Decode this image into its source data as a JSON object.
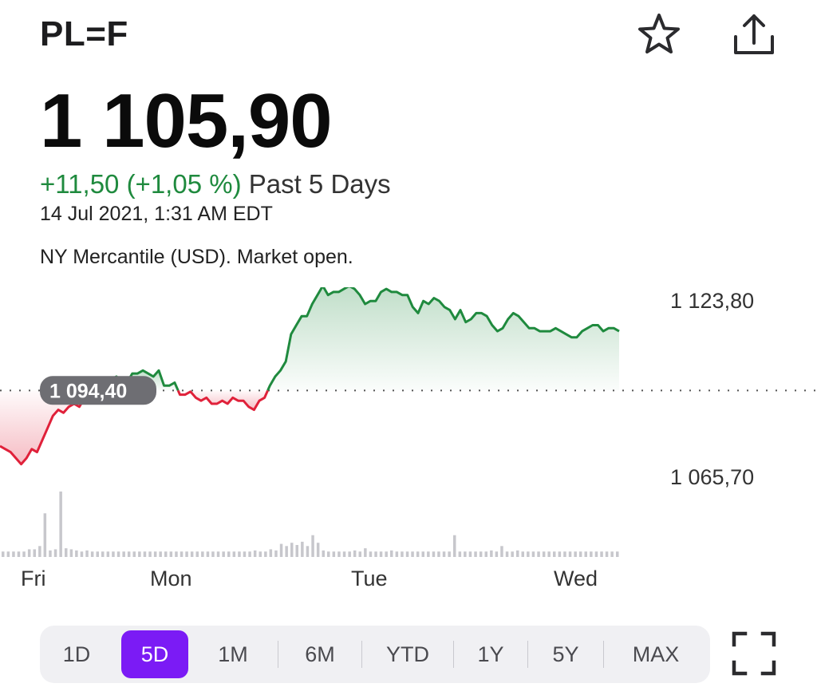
{
  "header": {
    "ticker": "PL=F",
    "favorite_icon": "star-outline-icon",
    "share_icon": "share-icon"
  },
  "quote": {
    "price": "1 105,90",
    "change": "+11,50 (+1,05 %)",
    "period": "Past 5 Days",
    "timestamp": "14 Jul 2021, 1:31 AM EDT",
    "market_status": "NY Mercantile (USD). Market open."
  },
  "colors": {
    "up": "#1f8a3e",
    "down": "#e0213a",
    "accent": "#7b1bf5"
  },
  "chart_data": {
    "type": "line",
    "reference_label": "1 094,40",
    "reference_value": 1094.4,
    "y_tick_labels": [
      "1 123,80",
      "1 065,70"
    ],
    "y_ticks": [
      1123.8,
      1065.7
    ],
    "x_tick_labels": [
      "Fri",
      "Mon",
      "Tue",
      "Wed"
    ],
    "series": [
      {
        "values": [
          1076,
          1075,
          1074,
          1072,
          1070,
          1072,
          1075,
          1074,
          1078,
          1082,
          1086,
          1088,
          1087,
          1089,
          1090,
          1089,
          1092,
          1094,
          1091,
          1091,
          1097,
          1098,
          1099,
          1097,
          1097,
          1100,
          1100,
          1101,
          1100,
          1099,
          1101,
          1096,
          1096,
          1097,
          1093,
          1093,
          1094,
          1092,
          1091,
          1092,
          1090,
          1090,
          1091,
          1090,
          1092,
          1091,
          1091,
          1089,
          1088,
          1091,
          1092,
          1096,
          1099,
          1101,
          1104,
          1113,
          1116,
          1119,
          1119,
          1123,
          1126,
          1129,
          1126,
          1127,
          1127,
          1128,
          1129,
          1128,
          1126,
          1123,
          1124,
          1124,
          1127,
          1128,
          1127,
          1127,
          1126,
          1126,
          1122,
          1120,
          1124,
          1123,
          1125,
          1124,
          1122,
          1121,
          1118,
          1121,
          1117,
          1118,
          1120,
          1120,
          1119,
          1116,
          1114,
          1115,
          1118,
          1120,
          1119,
          1117,
          1115,
          1115,
          1114,
          1114,
          1114,
          1115,
          1114,
          1113,
          1112,
          1112,
          1114,
          1115,
          1116,
          1116,
          1114,
          1115,
          1115,
          1114
        ]
      }
    ],
    "volume": [
      0.05,
      0.05,
      0.05,
      0.05,
      0.05,
      0.07,
      0.07,
      0.1,
      0.4,
      0.06,
      0.07,
      0.6,
      0.08,
      0.07,
      0.06,
      0.05,
      0.06,
      0.05,
      0.05,
      0.05,
      0.05,
      0.05,
      0.05,
      0.05,
      0.05,
      0.05,
      0.05,
      0.05,
      0.05,
      0.05,
      0.05,
      0.05,
      0.05,
      0.05,
      0.05,
      0.05,
      0.05,
      0.05,
      0.05,
      0.05,
      0.05,
      0.05,
      0.05,
      0.05,
      0.05,
      0.05,
      0.05,
      0.05,
      0.06,
      0.05,
      0.05,
      0.07,
      0.06,
      0.12,
      0.1,
      0.13,
      0.11,
      0.14,
      0.1,
      0.2,
      0.13,
      0.06,
      0.05,
      0.05,
      0.05,
      0.05,
      0.05,
      0.06,
      0.05,
      0.08,
      0.05,
      0.05,
      0.05,
      0.05,
      0.06,
      0.05,
      0.05,
      0.05,
      0.05,
      0.05,
      0.05,
      0.05,
      0.05,
      0.05,
      0.05,
      0.05,
      0.2,
      0.05,
      0.05,
      0.05,
      0.05,
      0.05,
      0.05,
      0.06,
      0.05,
      0.1,
      0.05,
      0.05,
      0.06,
      0.05,
      0.05,
      0.05,
      0.05,
      0.05,
      0.05,
      0.05,
      0.05,
      0.05,
      0.05,
      0.05,
      0.05,
      0.05,
      0.05,
      0.05,
      0.05,
      0.05,
      0.05,
      0.05
    ]
  },
  "ranges": {
    "items": [
      "1D",
      "5D",
      "1M",
      "6M",
      "YTD",
      "1Y",
      "5Y",
      "MAX"
    ],
    "active": "5D"
  },
  "fullscreen_icon": "fullscreen-icon"
}
